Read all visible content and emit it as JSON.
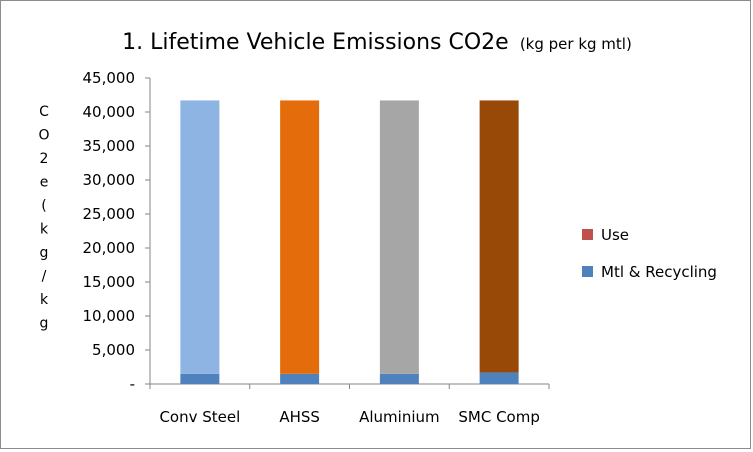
{
  "chart_data": {
    "type": "bar",
    "stacked": true,
    "title": "1. Lifetime Vehicle Emissions CO2e",
    "title_suffix": "(kg per kg mtl)",
    "xlabel": "",
    "ylabel": "CO2e (kg/kg",
    "categories": [
      "Conv Steel",
      "AHSS",
      "Aluminium",
      "SMC Comp"
    ],
    "series": [
      {
        "name": "Mtl & Recycling",
        "values": [
          1500,
          1500,
          1500,
          1700
        ],
        "color": "#4f81bd"
      },
      {
        "name": "Use",
        "values": [
          40200,
          40200,
          40200,
          40000
        ],
        "color": "#c0504d",
        "bar_colors": [
          "#8db4e2",
          "#e46c0a",
          "#a6a6a6",
          "#984807"
        ]
      }
    ],
    "ylim": [
      0,
      45000
    ],
    "ytick_labels": [
      "-",
      "5,000",
      "10,000",
      "15,000",
      "20,000",
      "25,000",
      "30,000",
      "35,000",
      "40,000",
      "45,000"
    ],
    "grid": false,
    "legend_position": "right"
  }
}
